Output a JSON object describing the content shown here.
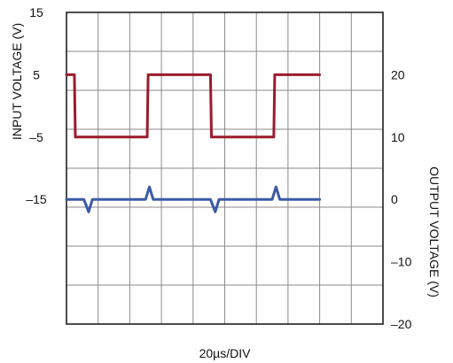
{
  "chart_data": {
    "type": "line",
    "xlabel": "20µs/DIV",
    "x_divisions": 10,
    "y_divisions": 8,
    "grid": true,
    "left_axis": {
      "label": "INPUT VOLTAGE (V)",
      "ticks": [
        15,
        5,
        -5,
        -15
      ],
      "tick_labels": [
        "15",
        "5",
        "–5",
        "–15"
      ],
      "range": [
        -35,
        15
      ]
    },
    "right_axis": {
      "label": "OUTPUT VOLTAGE (V)",
      "ticks": [
        20,
        10,
        0,
        -10,
        -20
      ],
      "tick_labels": [
        "20",
        "10",
        "0",
        "–10",
        "–20"
      ],
      "range": [
        -20,
        30
      ]
    },
    "series": [
      {
        "axis": "left",
        "color": "#9b1c2c",
        "points": [
          [
            0.0,
            5
          ],
          [
            0.25,
            5
          ],
          [
            0.28,
            -5
          ],
          [
            2.55,
            -5
          ],
          [
            2.58,
            5
          ],
          [
            4.55,
            5
          ],
          [
            4.58,
            -5
          ],
          [
            6.55,
            -5
          ],
          [
            6.58,
            5
          ],
          [
            8.0,
            5
          ]
        ]
      },
      {
        "axis": "right",
        "color": "#3b5aa6",
        "points": [
          [
            0.0,
            0
          ],
          [
            0.55,
            0
          ],
          [
            0.7,
            -2
          ],
          [
            0.82,
            0
          ],
          [
            2.5,
            0
          ],
          [
            2.62,
            2
          ],
          [
            2.74,
            0
          ],
          [
            4.55,
            0
          ],
          [
            4.7,
            -2
          ],
          [
            4.82,
            0
          ],
          [
            6.5,
            0
          ],
          [
            6.62,
            2
          ],
          [
            6.74,
            0
          ],
          [
            8.0,
            0
          ]
        ]
      }
    ]
  }
}
